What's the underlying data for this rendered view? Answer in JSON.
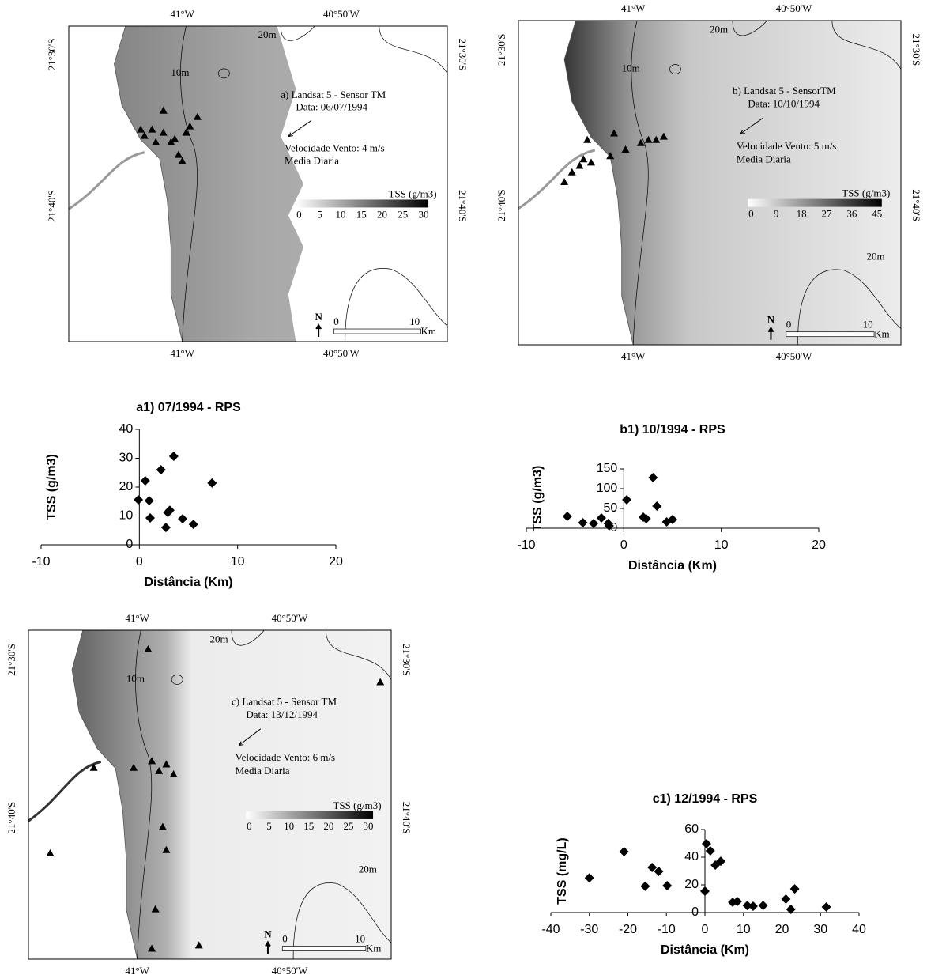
{
  "maps": [
    {
      "annotation": [
        "a) Landsat 5 - Sensor TM",
        "Data: 06/07/1994"
      ],
      "wind": [
        "Velocidade Vento: 4 m/s",
        "Media Diaria"
      ],
      "legend_title": "TSS (g/m3)",
      "legend_ticks": [
        0,
        5,
        10,
        15,
        20,
        25,
        30
      ],
      "lon_labels": [
        "41°W",
        "40°50'W"
      ],
      "lat_labels": [
        "21°30'S",
        "21°40'S"
      ],
      "depth_labels": [
        "20m",
        "10m"
      ],
      "north": "N",
      "scale_labels": [
        0,
        10,
        "Km"
      ]
    },
    {
      "annotation": [
        "b) Landsat 5 - SensorTM",
        "Data: 10/10/1994"
      ],
      "wind": [
        "Velocidade Vento: 5 m/s",
        "Media Diaria"
      ],
      "legend_title": "TSS (g/m3)",
      "legend_ticks": [
        0,
        9,
        18,
        27,
        36,
        45
      ],
      "lon_labels": [
        "41°W",
        "40°50'W"
      ],
      "lat_labels": [
        "21°30'S",
        "21°40'S"
      ],
      "depth_labels": [
        "20m",
        "10m",
        "20m"
      ],
      "north": "N",
      "scale_labels": [
        0,
        10,
        "Km"
      ]
    },
    {
      "annotation": [
        "c) Landsat 5 - Sensor TM",
        "Data: 13/12/1994"
      ],
      "wind": [
        "Velocidade Vento: 6 m/s",
        "Media Diaria"
      ],
      "legend_title": "TSS (g/m3)",
      "legend_ticks": [
        0,
        5,
        10,
        15,
        20,
        25,
        30
      ],
      "lon_labels": [
        "41°W",
        "40°50'W"
      ],
      "lat_labels": [
        "21°30'S",
        "21°40'S"
      ],
      "depth_labels": [
        "20m",
        "10m",
        "20m"
      ],
      "north": "N",
      "scale_labels": [
        0,
        10,
        "Km"
      ]
    }
  ],
  "chart_data": [
    {
      "type": "scatter",
      "title": "a1) 07/1994 - RPS",
      "x_label": "Distância (Km)",
      "y_label": "TSS (g/m3)",
      "color": "#000000",
      "x": [
        -0.1,
        0.6,
        1.0,
        1.1,
        2.2,
        2.7,
        2.9,
        3.1,
        3.5,
        4.4,
        5.5,
        7.4
      ],
      "y": [
        15.6,
        22.2,
        15.3,
        9.3,
        26,
        6,
        11.2,
        12,
        30.7,
        9,
        7.1,
        21.4
      ],
      "xlim": [
        -10,
        20
      ],
      "ylim": [
        0,
        40
      ],
      "xticks": [
        -10,
        0,
        10,
        20
      ],
      "yticks": [
        0,
        10,
        20,
        30,
        40
      ]
    },
    {
      "type": "scatter",
      "title": "b1) 10/1994 - RPS",
      "x_label": "Distância (Km)",
      "y_label": "TSS (g/m3)",
      "color": "#000000",
      "x": [
        -5.8,
        -4.2,
        -3.1,
        -2.3,
        -1.6,
        -1.5,
        0.3,
        2.0,
        2.3,
        3.0,
        3.4,
        4.4,
        5.0
      ],
      "y": [
        30,
        14,
        12,
        26,
        12,
        6,
        72,
        28,
        24,
        128,
        56,
        16,
        22
      ],
      "xlim": [
        -10,
        20
      ],
      "ylim": [
        0,
        150
      ],
      "xticks": [
        -10,
        0,
        10,
        20
      ],
      "yticks": [
        0,
        50,
        100,
        150
      ]
    },
    {
      "type": "scatter",
      "title": "c1) 12/1994 - RPS",
      "x_label": "Distância (Km)",
      "y_label": "TSS (mg/L)",
      "color": "#000000",
      "x": [
        -30,
        -21,
        -15.5,
        -13.7,
        -12,
        -9.8,
        0,
        0.4,
        1.4,
        2.7,
        4.1,
        7.2,
        8.4,
        11,
        12.5,
        15.1,
        21,
        22.3,
        23.3,
        31.5
      ],
      "y": [
        25,
        44,
        19,
        32.6,
        29.7,
        19.4,
        15.4,
        49.7,
        44.6,
        34.3,
        37.1,
        7.4,
        8,
        5.1,
        4.6,
        5.1,
        9.7,
        2.3,
        17.1,
        4
      ],
      "xlim": [
        -40,
        40
      ],
      "ylim": [
        0,
        60
      ],
      "xticks": [
        -40,
        -30,
        -20,
        -10,
        0,
        10,
        20,
        30,
        40
      ],
      "yticks": [
        0,
        20,
        40,
        60
      ]
    }
  ]
}
